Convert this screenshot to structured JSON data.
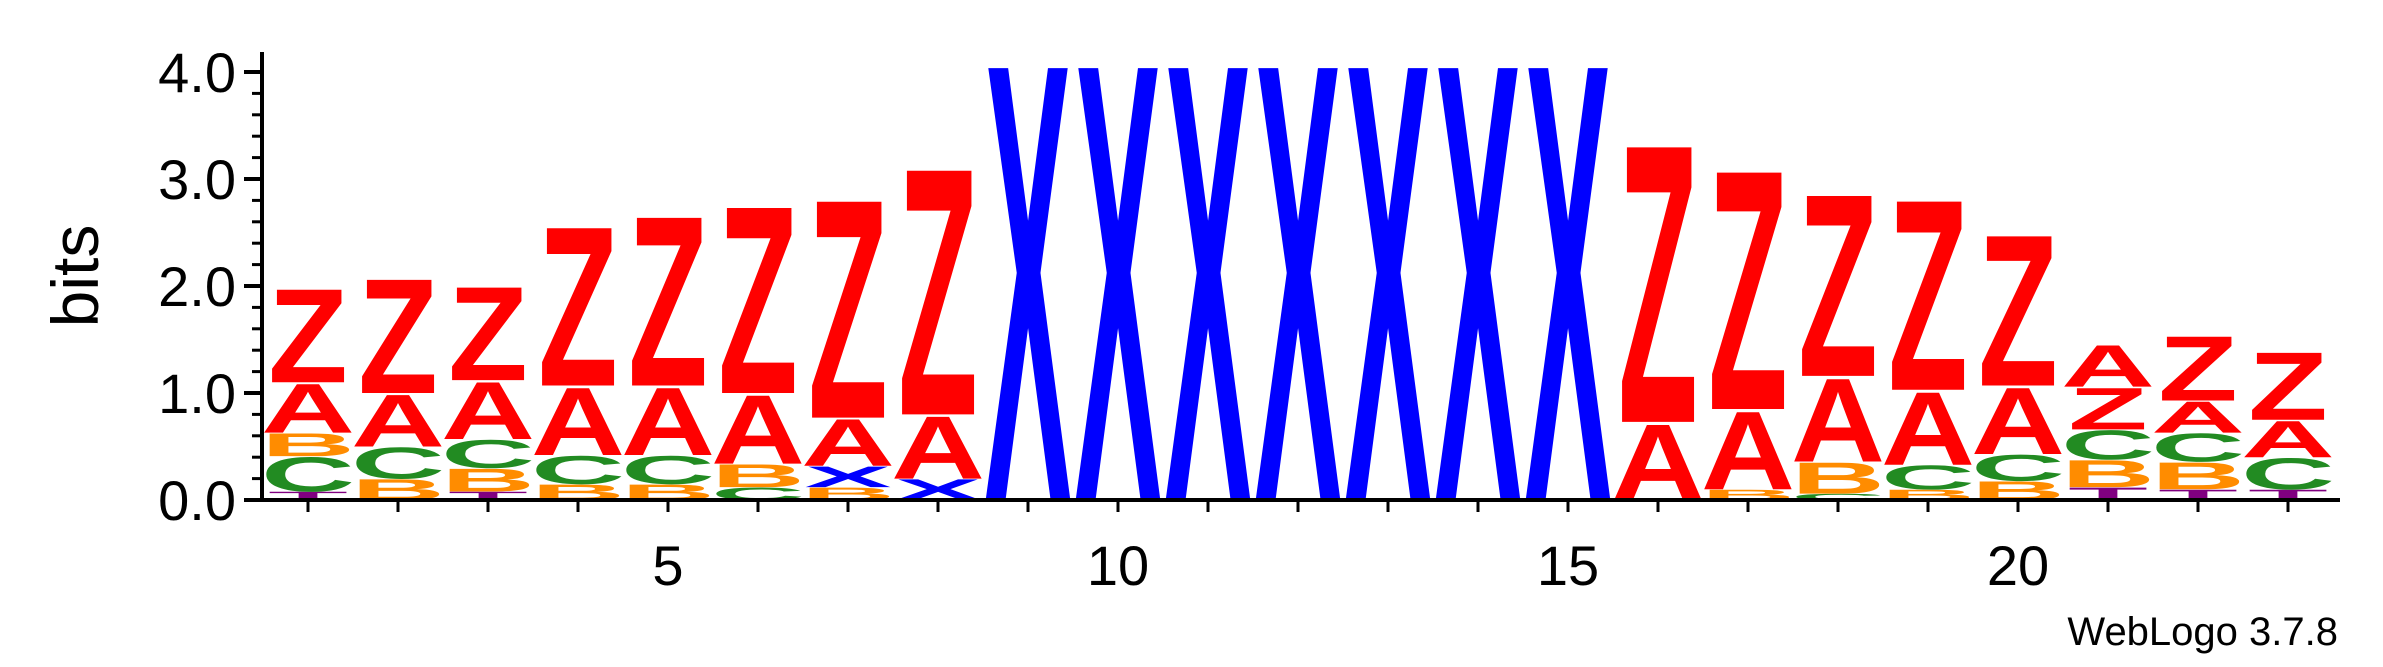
{
  "chart_data": {
    "type": "sequence-logo",
    "ylabel": "bits",
    "ylim": [
      0,
      4.0
    ],
    "y_ticks": [
      "0.0",
      "1.0",
      "2.0",
      "3.0",
      "4.0"
    ],
    "x_ticks": [
      {
        "position": 5,
        "label": "5"
      },
      {
        "position": 10,
        "label": "10"
      },
      {
        "position": 15,
        "label": "15"
      },
      {
        "position": 20,
        "label": "20"
      }
    ],
    "footer": "WebLogo 3.7.8",
    "colors": {
      "Z": "#ff0000",
      "A": "#ff0000",
      "X": "#0000ff",
      "C": "#228b22",
      "B": "#ff8c00",
      "T": "#800080"
    },
    "positions": [
      {
        "pos": 1,
        "stack": [
          {
            "l": "T",
            "h": 0.08
          },
          {
            "l": "C",
            "h": 0.33
          },
          {
            "l": "B",
            "h": 0.22
          },
          {
            "l": "A",
            "h": 0.47
          },
          {
            "l": "Z",
            "h": 0.9
          }
        ]
      },
      {
        "pos": 2,
        "stack": [
          {
            "l": "B",
            "h": 0.2
          },
          {
            "l": "C",
            "h": 0.3
          },
          {
            "l": "A",
            "h": 0.5
          },
          {
            "l": "Z",
            "h": 1.1
          }
        ]
      },
      {
        "pos": 3,
        "stack": [
          {
            "l": "T",
            "h": 0.08
          },
          {
            "l": "B",
            "h": 0.22
          },
          {
            "l": "C",
            "h": 0.27
          },
          {
            "l": "A",
            "h": 0.55
          },
          {
            "l": "Z",
            "h": 0.9
          }
        ]
      },
      {
        "pos": 4,
        "stack": [
          {
            "l": "B",
            "h": 0.15
          },
          {
            "l": "C",
            "h": 0.27
          },
          {
            "l": "A",
            "h": 0.65
          },
          {
            "l": "Z",
            "h": 1.53
          }
        ]
      },
      {
        "pos": 5,
        "stack": [
          {
            "l": "B",
            "h": 0.15
          },
          {
            "l": "C",
            "h": 0.27
          },
          {
            "l": "A",
            "h": 0.65
          },
          {
            "l": "Z",
            "h": 1.63
          }
        ]
      },
      {
        "pos": 6,
        "stack": [
          {
            "l": "C",
            "h": 0.12
          },
          {
            "l": "B",
            "h": 0.22
          },
          {
            "l": "A",
            "h": 0.66
          },
          {
            "l": "Z",
            "h": 1.8
          }
        ]
      },
      {
        "pos": 7,
        "stack": [
          {
            "l": "B",
            "h": 0.12
          },
          {
            "l": "X",
            "h": 0.2
          },
          {
            "l": "A",
            "h": 0.45
          },
          {
            "l": "Z",
            "h": 2.1
          }
        ]
      },
      {
        "pos": 8,
        "stack": [
          {
            "l": "X",
            "h": 0.2
          },
          {
            "l": "A",
            "h": 0.6
          },
          {
            "l": "Z",
            "h": 2.37
          }
        ]
      },
      {
        "pos": 9,
        "stack": [
          {
            "l": "X",
            "h": 4.2
          }
        ]
      },
      {
        "pos": 10,
        "stack": [
          {
            "l": "X",
            "h": 4.2
          }
        ]
      },
      {
        "pos": 11,
        "stack": [
          {
            "l": "X",
            "h": 4.2
          }
        ]
      },
      {
        "pos": 12,
        "stack": [
          {
            "l": "X",
            "h": 4.2
          }
        ]
      },
      {
        "pos": 13,
        "stack": [
          {
            "l": "X",
            "h": 4.2
          }
        ]
      },
      {
        "pos": 14,
        "stack": [
          {
            "l": "X",
            "h": 4.2
          }
        ]
      },
      {
        "pos": 15,
        "stack": [
          {
            "l": "X",
            "h": 4.2
          }
        ]
      },
      {
        "pos": 16,
        "stack": [
          {
            "l": "A",
            "h": 0.73
          },
          {
            "l": "Z",
            "h": 2.67
          }
        ]
      },
      {
        "pos": 17,
        "stack": [
          {
            "l": "B",
            "h": 0.1
          },
          {
            "l": "A",
            "h": 0.75
          },
          {
            "l": "Z",
            "h": 2.3
          }
        ]
      },
      {
        "pos": 18,
        "stack": [
          {
            "l": "C",
            "h": 0.06
          },
          {
            "l": "B",
            "h": 0.3
          },
          {
            "l": "A",
            "h": 0.8
          },
          {
            "l": "Z",
            "h": 1.75
          }
        ]
      },
      {
        "pos": 19,
        "stack": [
          {
            "l": "B",
            "h": 0.1
          },
          {
            "l": "C",
            "h": 0.23
          },
          {
            "l": "A",
            "h": 0.7
          },
          {
            "l": "Z",
            "h": 1.83
          }
        ]
      },
      {
        "pos": 20,
        "stack": [
          {
            "l": "B",
            "h": 0.18
          },
          {
            "l": "C",
            "h": 0.25
          },
          {
            "l": "A",
            "h": 0.64
          },
          {
            "l": "Z",
            "h": 1.45
          }
        ]
      },
      {
        "pos": 21,
        "stack": [
          {
            "l": "T",
            "h": 0.12
          },
          {
            "l": "B",
            "h": 0.26
          },
          {
            "l": "C",
            "h": 0.28
          },
          {
            "l": "Z",
            "h": 0.4
          },
          {
            "l": "A",
            "h": 0.4
          }
        ]
      },
      {
        "pos": 22,
        "stack": [
          {
            "l": "T",
            "h": 0.1
          },
          {
            "l": "B",
            "h": 0.26
          },
          {
            "l": "C",
            "h": 0.27
          },
          {
            "l": "A",
            "h": 0.3
          },
          {
            "l": "Z",
            "h": 0.62
          }
        ]
      },
      {
        "pos": 23,
        "stack": [
          {
            "l": "T",
            "h": 0.1
          },
          {
            "l": "C",
            "h": 0.3
          },
          {
            "l": "A",
            "h": 0.35
          },
          {
            "l": "Z",
            "h": 0.65
          }
        ]
      }
    ]
  }
}
